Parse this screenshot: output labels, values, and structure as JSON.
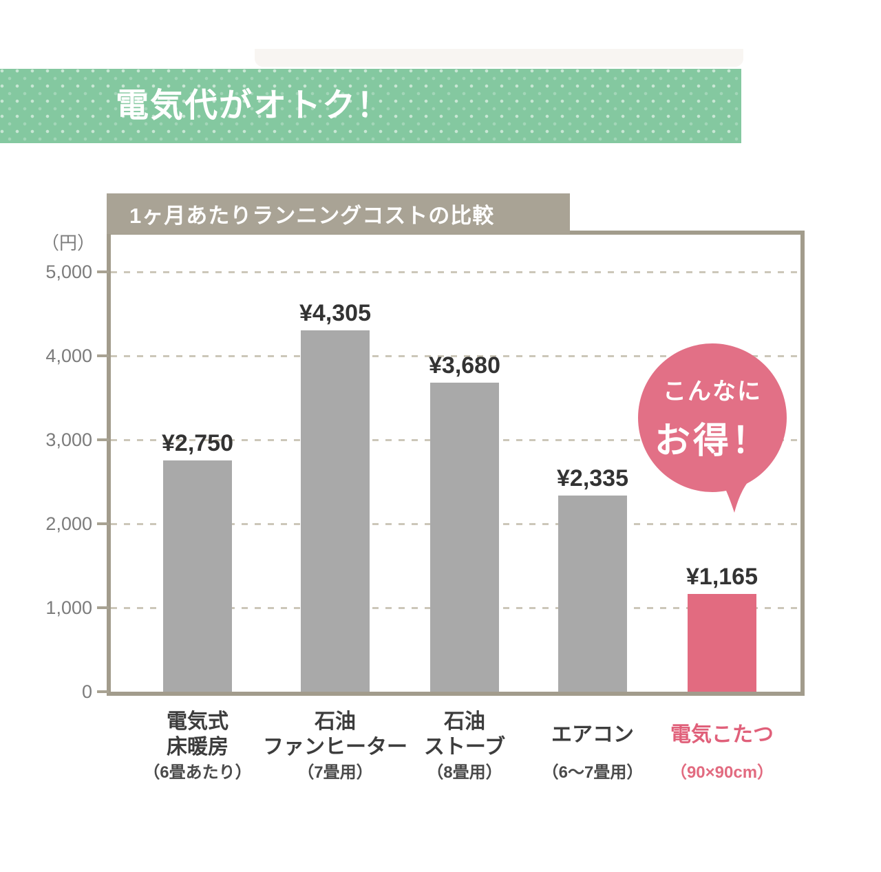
{
  "header": {
    "title": "電気代がオトク！"
  },
  "bubble": {
    "line1": "こんなに",
    "line2": "お得！"
  },
  "chart_data": {
    "type": "bar",
    "title": "1ヶ月あたりランニングコストの比較",
    "unit_label": "（円）",
    "ylabel": "円 (yen per month)",
    "ylim": [
      0,
      5400
    ],
    "grid": "horizontal dashed",
    "legend": "none",
    "y_ticks": [
      0,
      1000,
      2000,
      3000,
      4000,
      5000
    ],
    "y_tick_labels": [
      "0",
      "1,000",
      "2,000",
      "3,000",
      "4,000",
      "5,000"
    ],
    "categories": [
      {
        "name": "電気式\n床暖房",
        "note": "（6畳あたり）",
        "value": 2750,
        "value_label": "¥2,750",
        "highlight": false
      },
      {
        "name": "石油\nファンヒーター",
        "note": "（7畳用）",
        "value": 4305,
        "value_label": "¥4,305",
        "highlight": false
      },
      {
        "name": "石油\nストーブ",
        "note": "（8畳用）",
        "value": 3680,
        "value_label": "¥3,680",
        "highlight": false
      },
      {
        "name": "エアコン",
        "note": "（6～7畳用）",
        "value": 2335,
        "value_label": "¥2,335",
        "highlight": false
      },
      {
        "name": "電気こたつ",
        "note": "（90×90cm）",
        "value": 1165,
        "value_label": "¥1,165",
        "highlight": true
      }
    ],
    "colors": {
      "bar": "#a9a9a9",
      "highlight_bar": "#e26b80",
      "banner_green": "#84c8a0",
      "title_bar_taupe": "#a9a395",
      "frame_taupe": "#a29c8c",
      "bubble_pink": "#e27086",
      "highlight_text_pink": "#e0607a"
    }
  }
}
